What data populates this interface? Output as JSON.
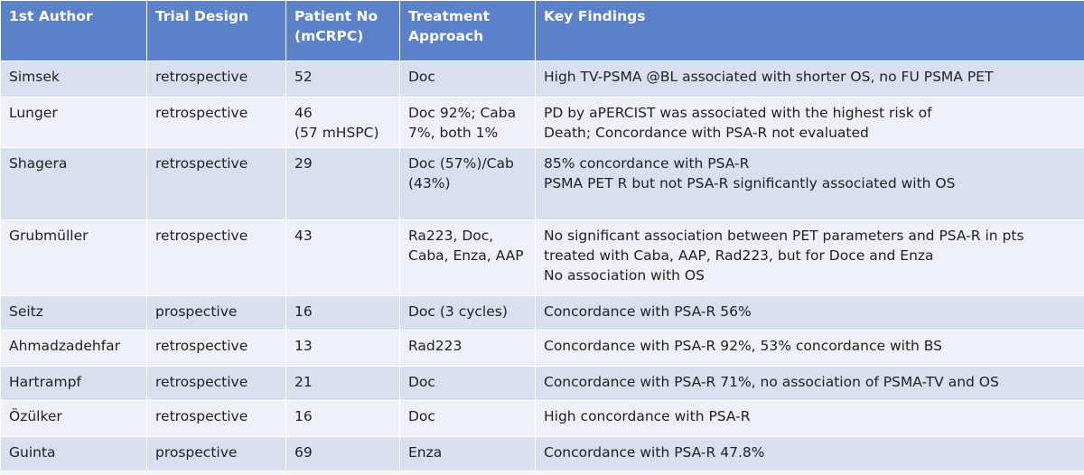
{
  "table": {
    "header": [
      "1st Author",
      "Trial Design",
      "Patient No\n(mCRPC)",
      "Treatment\nApproach",
      "Key Findings"
    ],
    "rows": [
      [
        "Simsek",
        "retrospective",
        "52",
        "Doc",
        "High TV-PSMA @BL associated with shorter OS, no FU PSMA PET"
      ],
      [
        "Lunger",
        "retrospective",
        "46\n(57 mHSPC)",
        "Doc 92%; Caba\n7%, both 1%",
        "PD by aPERCIST was associated with the highest risk of\nDeath; Concordance with PSA-R not evaluated"
      ],
      [
        "Shagera",
        "retrospective",
        "29",
        "Doc (57%)/Cab\n(43%)",
        "85% concordance with PSA-R\nPSMA PET R but not PSA-R significantly associated with OS"
      ],
      [
        "Grubmüller",
        "retrospective",
        "43",
        "Ra223, Doc,\nCaba, Enza, AAP",
        "No significant association between PET parameters and PSA-R in pts\ntreated with Caba, AAP, Rad223, but for Doce and Enza\nNo association with OS"
      ],
      [
        "Seitz",
        "prospective",
        "16",
        "Doc (3 cycles)",
        "Concordance with PSA-R 56%"
      ],
      [
        "Ahmadzadehfar",
        "retrospective",
        "13",
        "Rad223",
        "Concordance with PSA-R 92%, 53% concordance with BS"
      ],
      [
        "Hartrampf",
        "retrospective",
        "21",
        "Doc",
        "Concordance with PSA-R 71%, no association of PSMA-TV and OS"
      ],
      [
        "Özülker",
        "retrospective",
        "16",
        "Doc",
        "High concordance with PSA-R"
      ],
      [
        "Guinta",
        "prospective",
        "69",
        "Enza",
        "Concordance with PSA-R 47.8%"
      ]
    ]
  }
}
